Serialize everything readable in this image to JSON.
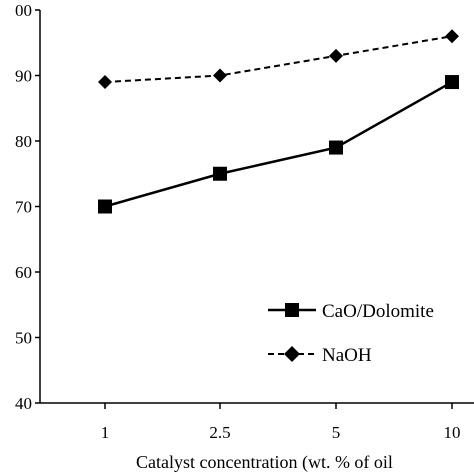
{
  "chart_data": {
    "type": "line",
    "categories": [
      "1",
      "2.5",
      "5",
      "10"
    ],
    "series": [
      {
        "name": "CaO/Dolomite",
        "values": [
          70,
          75,
          79,
          89
        ],
        "marker": "square",
        "line_style": "solid",
        "color": "#000000"
      },
      {
        "name": "NaOH",
        "values": [
          89,
          90,
          93,
          96
        ],
        "marker": "diamond",
        "line_style": "dashed",
        "color": "#000000"
      }
    ],
    "xlabel": "Catalyst concentration (wt. % of oil",
    "ylabel": "",
    "ylim": [
      40,
      100
    ],
    "yticks": [
      40,
      50,
      60,
      70,
      80,
      90,
      "00"
    ],
    "grid": false,
    "legend_position": "bottom-right"
  }
}
